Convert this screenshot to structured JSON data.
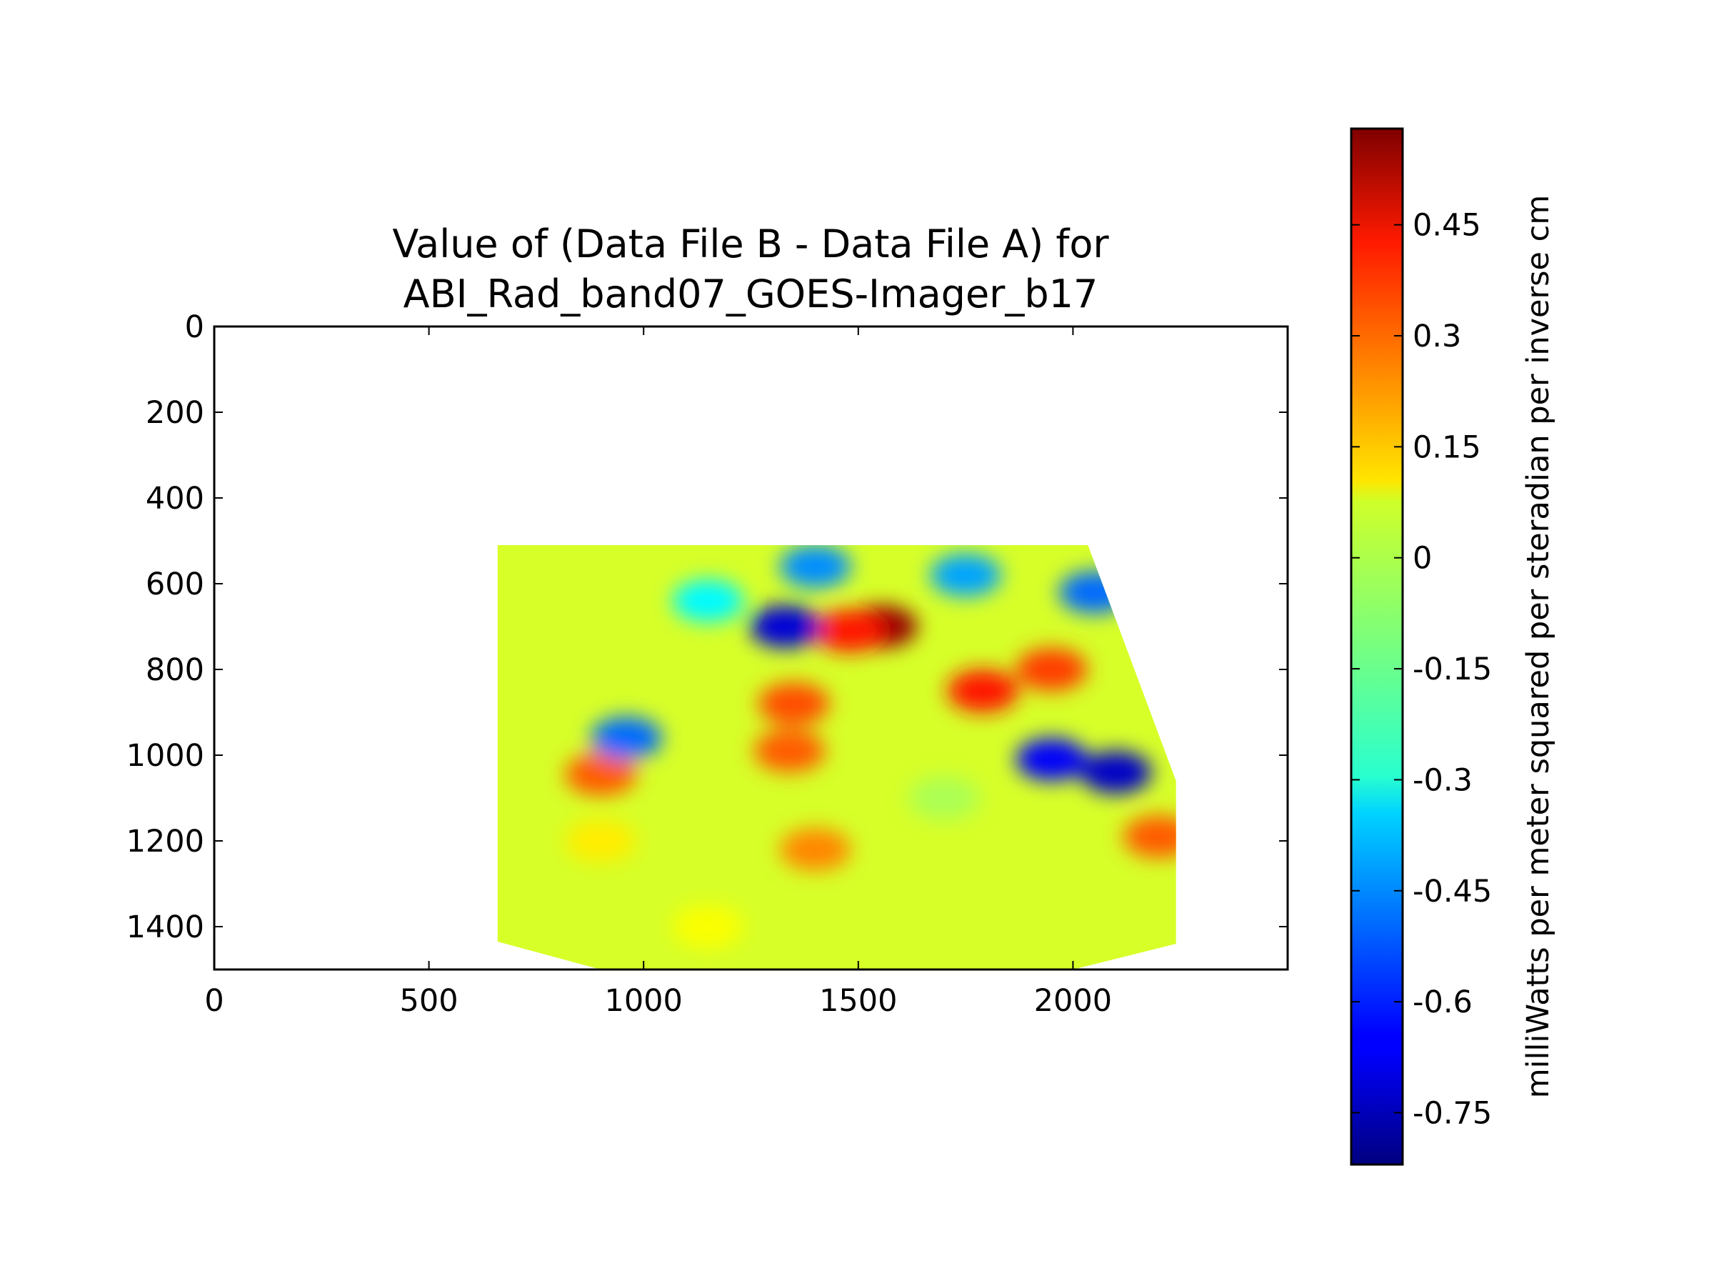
{
  "chart_data": {
    "type": "heatmap",
    "title_line1": "Value of (Data File B - Data File A) for",
    "title_line2": "ABI_Rad_band07_GOES-Imager_b17",
    "xlabel": "",
    "ylabel": "",
    "xlim": [
      0,
      2500
    ],
    "ylim": [
      1500,
      0
    ],
    "x_ticks": [
      "0",
      "500",
      "1000",
      "1500",
      "2000"
    ],
    "y_ticks": [
      "0",
      "200",
      "400",
      "600",
      "800",
      "1000",
      "1200",
      "1400"
    ],
    "data_extent": {
      "polygon": [
        [
          660,
          510
        ],
        [
          2035,
          510
        ],
        [
          2240,
          1060
        ],
        [
          2240,
          1440
        ],
        [
          2000,
          1500
        ],
        [
          900,
          1500
        ],
        [
          660,
          1435
        ]
      ]
    },
    "colorbar": {
      "colormap": "jet",
      "vmin": -0.82,
      "vmax": 0.58,
      "ticks": [
        "0.45",
        "0.3",
        "0.15",
        "0",
        "-0.15",
        "-0.3",
        "-0.45",
        "-0.6",
        "-0.75"
      ],
      "label": "milliWatts per meter squared per steradian per inverse cm"
    },
    "features": [
      {
        "x": 1555,
        "y": 700,
        "value": 0.55
      },
      {
        "x": 1480,
        "y": 710,
        "value": 0.38
      },
      {
        "x": 1350,
        "y": 880,
        "value": 0.3
      },
      {
        "x": 1340,
        "y": 990,
        "value": 0.28
      },
      {
        "x": 1790,
        "y": 850,
        "value": 0.38
      },
      {
        "x": 1950,
        "y": 800,
        "value": 0.32
      },
      {
        "x": 900,
        "y": 1045,
        "value": 0.28
      },
      {
        "x": 1400,
        "y": 1220,
        "value": 0.22
      },
      {
        "x": 2200,
        "y": 1190,
        "value": 0.28
      },
      {
        "x": 1330,
        "y": 700,
        "value": -0.7
      },
      {
        "x": 1950,
        "y": 1010,
        "value": -0.65
      },
      {
        "x": 2100,
        "y": 1040,
        "value": -0.72
      },
      {
        "x": 1400,
        "y": 560,
        "value": -0.45
      },
      {
        "x": 1750,
        "y": 580,
        "value": -0.42
      },
      {
        "x": 2050,
        "y": 620,
        "value": -0.5
      },
      {
        "x": 960,
        "y": 960,
        "value": -0.5
      },
      {
        "x": 1150,
        "y": 640,
        "value": -0.3
      },
      {
        "x": 900,
        "y": 1200,
        "value": 0.08
      },
      {
        "x": 1700,
        "y": 1100,
        "value": -0.06
      },
      {
        "x": 1150,
        "y": 1400,
        "value": 0.05
      }
    ]
  }
}
